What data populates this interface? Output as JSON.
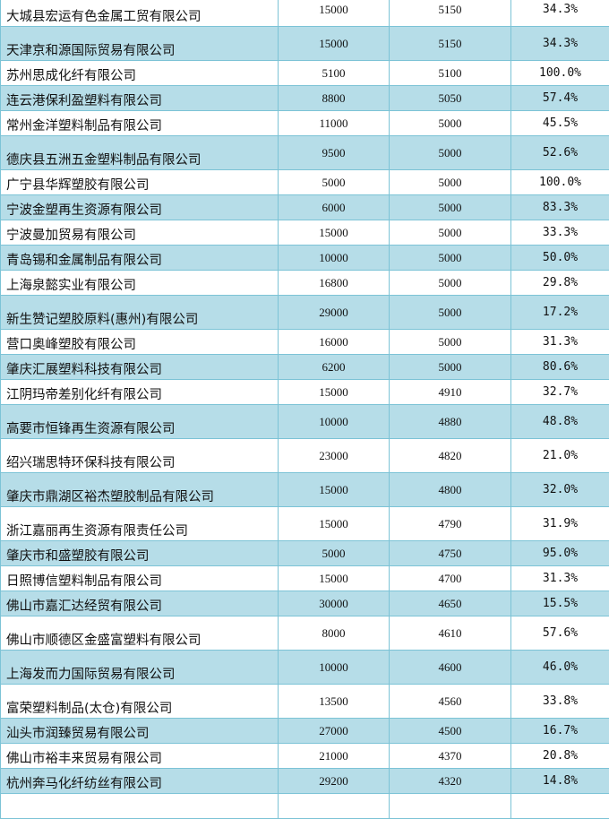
{
  "rows": [
    {
      "company": "大城县宏运有色金属工贸有限公司",
      "capacity": "15000",
      "amount": "5150",
      "ratio": "34.3%"
    },
    {
      "company": "天津京和源国际贸易有限公司",
      "capacity": "15000",
      "amount": "5150",
      "ratio": "34.3%"
    },
    {
      "company": "苏州思成化纤有限公司",
      "capacity": "5100",
      "amount": "5100",
      "ratio": "100.0%"
    },
    {
      "company": "连云港保利盈塑料有限公司",
      "capacity": "8800",
      "amount": "5050",
      "ratio": "57.4%"
    },
    {
      "company": "常州金洋塑料制品有限公司",
      "capacity": "11000",
      "amount": "5000",
      "ratio": "45.5%"
    },
    {
      "company": "德庆县五洲五金塑料制品有限公司",
      "capacity": "9500",
      "amount": "5000",
      "ratio": "52.6%"
    },
    {
      "company": "广宁县华辉塑胶有限公司",
      "capacity": "5000",
      "amount": "5000",
      "ratio": "100.0%"
    },
    {
      "company": "宁波金塑再生资源有限公司",
      "capacity": "6000",
      "amount": "5000",
      "ratio": "83.3%"
    },
    {
      "company": "宁波曼加贸易有限公司",
      "capacity": "15000",
      "amount": "5000",
      "ratio": "33.3%"
    },
    {
      "company": "青岛锡和金属制品有限公司",
      "capacity": "10000",
      "amount": "5000",
      "ratio": "50.0%"
    },
    {
      "company": "上海泉懿实业有限公司",
      "capacity": "16800",
      "amount": "5000",
      "ratio": "29.8%"
    },
    {
      "company": "新生赞记塑胶原料(惠州)有限公司",
      "capacity": "29000",
      "amount": "5000",
      "ratio": "17.2%"
    },
    {
      "company": "营口奥峰塑胶有限公司",
      "capacity": "16000",
      "amount": "5000",
      "ratio": "31.3%"
    },
    {
      "company": "肇庆汇展塑料科技有限公司",
      "capacity": "6200",
      "amount": "5000",
      "ratio": "80.6%"
    },
    {
      "company": "江阴玛帝差别化纤有限公司",
      "capacity": "15000",
      "amount": "4910",
      "ratio": "32.7%"
    },
    {
      "company": "高要市恒锋再生资源有限公司",
      "capacity": "10000",
      "amount": "4880",
      "ratio": "48.8%"
    },
    {
      "company": "绍兴瑞思特环保科技有限公司",
      "capacity": "23000",
      "amount": "4820",
      "ratio": "21.0%"
    },
    {
      "company": "肇庆市鼎湖区裕杰塑胶制品有限公司",
      "capacity": "15000",
      "amount": "4800",
      "ratio": "32.0%"
    },
    {
      "company": "浙江嘉丽再生资源有限责任公司",
      "capacity": "15000",
      "amount": "4790",
      "ratio": "31.9%"
    },
    {
      "company": "肇庆市和盛塑胶有限公司",
      "capacity": "5000",
      "amount": "4750",
      "ratio": "95.0%"
    },
    {
      "company": "日照博信塑料制品有限公司",
      "capacity": "15000",
      "amount": "4700",
      "ratio": "31.3%"
    },
    {
      "company": "佛山市嘉汇达经贸有限公司",
      "capacity": "30000",
      "amount": "4650",
      "ratio": "15.5%"
    },
    {
      "company": "佛山市顺德区金盛富塑料有限公司",
      "capacity": "8000",
      "amount": "4610",
      "ratio": "57.6%"
    },
    {
      "company": "上海发而力国际贸易有限公司",
      "capacity": "10000",
      "amount": "4600",
      "ratio": "46.0%"
    },
    {
      "company": "富荣塑料制品(太仓)有限公司",
      "capacity": "13500",
      "amount": "4560",
      "ratio": "33.8%"
    },
    {
      "company": "汕头市润臻贸易有限公司",
      "capacity": "27000",
      "amount": "4500",
      "ratio": "16.7%"
    },
    {
      "company": "佛山市裕丰来贸易有限公司",
      "capacity": "21000",
      "amount": "4370",
      "ratio": "20.8%"
    },
    {
      "company": "杭州奔马化纤纺丝有限公司",
      "capacity": "29200",
      "amount": "4320",
      "ratio": "14.8%"
    },
    {
      "company": "",
      "capacity": "",
      "amount": "",
      "ratio": ""
    }
  ],
  "colors": {
    "row_blue": "#b6dde8",
    "row_white": "#ffffff",
    "border": "#7cc3d6",
    "text": "#111111"
  }
}
